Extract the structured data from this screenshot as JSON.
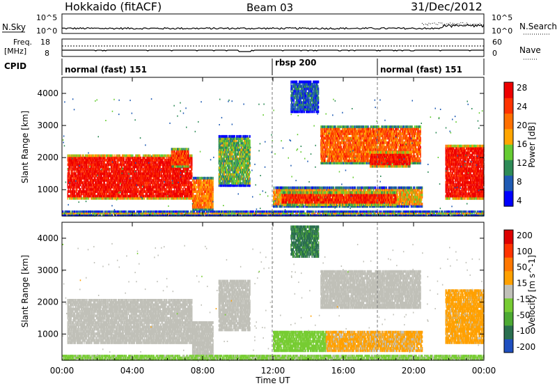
{
  "header": {
    "station": "Hokkaido (fitACF)",
    "beam": "Beam 03",
    "date": "31/Dec/2012"
  },
  "strips": {
    "nsky_label": "N.Sky",
    "nsearch_label": "N.Search",
    "freq_label_1": "Freq.",
    "freq_label_2": "[MHz]",
    "nave_label": "Nave",
    "cpid_label": "CPID",
    "nsky_ticks": [
      "10^5",
      "10^0"
    ],
    "nsearch_ticks": [
      "10^5",
      "10^0"
    ],
    "freq_ticks": [
      "18",
      "8"
    ],
    "nave_ticks": [
      "60",
      "0"
    ]
  },
  "cpid_segments": [
    {
      "label": "normal (fast) 151",
      "start_h": 0,
      "end_h": 12
    },
    {
      "label": "rbsp 200",
      "start_h": 12,
      "end_h": 18
    },
    {
      "label": "normal (fast) 151",
      "start_h": 18,
      "end_h": 24
    }
  ],
  "colors": {
    "power_scale": [
      "#0000ff",
      "#1f5bb4",
      "#2e8b57",
      "#66cc33",
      "#ffa500",
      "#ff7000",
      "#ff3300",
      "#ee0000"
    ],
    "velocity_scale": [
      "#1f4fbf",
      "#2a6f4f",
      "#4daa33",
      "#77cc33",
      "#c0c0b8",
      "#ffa000",
      "#ff7700",
      "#ff3300",
      "#dd0000"
    ]
  },
  "chart_data": [
    {
      "type": "heatmap",
      "xlabel": "Time UT",
      "ylabel": "Slant Range [km]",
      "x_ticks": [
        "00:00",
        "04:00",
        "08:00",
        "12:00",
        "16:00",
        "20:00",
        "00:00"
      ],
      "y_ticks": [
        "1000",
        "2000",
        "3000",
        "4000"
      ],
      "xlim": [
        0,
        24
      ],
      "ylim": [
        180,
        4500
      ],
      "colorbar": {
        "label": "Power [dB]",
        "ticks": [
          "28",
          "24",
          "20",
          "16",
          "12",
          "8",
          "4"
        ],
        "range": [
          0,
          30
        ]
      },
      "regions": [
        {
          "t0": 0.3,
          "t1": 7.4,
          "r0": 700,
          "r1": 2100,
          "level": 28
        },
        {
          "t0": 6.2,
          "t1": 7.2,
          "r0": 1700,
          "r1": 2300,
          "level": 24
        },
        {
          "t0": 7.4,
          "t1": 8.6,
          "r0": 350,
          "r1": 1400,
          "level": 20
        },
        {
          "t0": 8.9,
          "t1": 10.7,
          "r0": 1100,
          "r1": 2700,
          "level": 12
        },
        {
          "t0": 12.0,
          "t1": 20.5,
          "r0": 450,
          "r1": 1100,
          "level": 18
        },
        {
          "t0": 12.5,
          "t1": 19.0,
          "r0": 500,
          "r1": 950,
          "level": 26
        },
        {
          "t0": 14.7,
          "t1": 20.4,
          "r0": 1800,
          "r1": 3000,
          "level": 22
        },
        {
          "t0": 17.5,
          "t1": 19.8,
          "r0": 1700,
          "r1": 2200,
          "level": 28
        },
        {
          "t0": 13.0,
          "t1": 14.6,
          "r0": 3400,
          "r1": 4400,
          "level": 6
        },
        {
          "t0": 21.8,
          "t1": 24.0,
          "r0": 700,
          "r1": 2400,
          "level": 28
        },
        {
          "t0": 0.0,
          "t1": 24.0,
          "r0": 180,
          "r1": 350,
          "level": 16
        }
      ]
    },
    {
      "type": "heatmap",
      "xlabel": "Time UT",
      "ylabel": "Slant Range [km]",
      "x_ticks": [
        "00:00",
        "04:00",
        "08:00",
        "12:00",
        "16:00",
        "20:00",
        "00:00"
      ],
      "y_ticks": [
        "1000",
        "2000",
        "3000",
        "4000"
      ],
      "xlim": [
        0,
        24
      ],
      "ylim": [
        180,
        4500
      ],
      "colorbar": {
        "label": "Velocity [m s^-1]",
        "ticks": [
          "200",
          "100",
          "50",
          "15",
          "-15",
          "-50",
          "-100",
          "-200"
        ],
        "range": [
          -250,
          250
        ]
      },
      "regions": [
        {
          "t0": 0.3,
          "t1": 7.4,
          "r0": 700,
          "r1": 2100,
          "level": 0
        },
        {
          "t0": 7.4,
          "t1": 8.6,
          "r0": 350,
          "r1": 1400,
          "level": 0
        },
        {
          "t0": 8.9,
          "t1": 10.7,
          "r0": 1100,
          "r1": 2700,
          "level": 0
        },
        {
          "t0": 12.0,
          "t1": 15.0,
          "r0": 450,
          "r1": 1100,
          "level": -60
        },
        {
          "t0": 15.0,
          "t1": 20.5,
          "r0": 450,
          "r1": 1100,
          "level": 40
        },
        {
          "t0": 14.7,
          "t1": 20.4,
          "r0": 1800,
          "r1": 3000,
          "level": 0
        },
        {
          "t0": 13.0,
          "t1": 14.6,
          "r0": 3400,
          "r1": 4400,
          "level": -150
        },
        {
          "t0": 21.8,
          "t1": 24.0,
          "r0": 700,
          "r1": 2400,
          "level": 45
        },
        {
          "t0": 0.0,
          "t1": 24.0,
          "r0": 180,
          "r1": 350,
          "level": -40
        }
      ]
    }
  ]
}
